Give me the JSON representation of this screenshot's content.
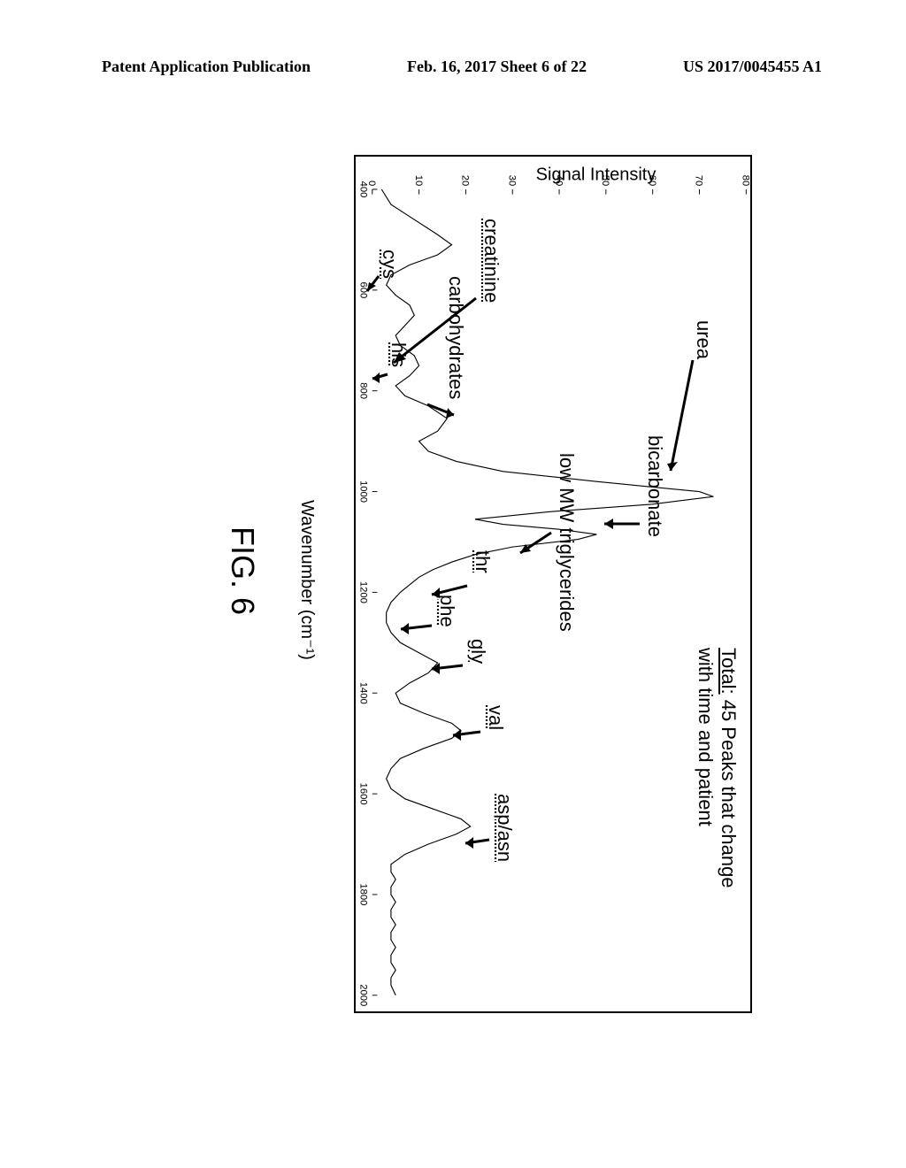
{
  "header": {
    "left": "Patent Application Publication",
    "center": "Feb. 16, 2017  Sheet 6 of 22",
    "right": "US 2017/0045455 A1"
  },
  "figure": {
    "caption": "FIG. 6",
    "xlabel": "Wavenumber (cm⁻¹)",
    "ylabel": "Signal Intensity",
    "xlim": [
      400,
      2000
    ],
    "ylim": [
      0,
      80
    ],
    "xticks": [
      400,
      600,
      800,
      1000,
      1200,
      1400,
      1600,
      1800,
      2000
    ],
    "yticks": [
      0,
      10,
      20,
      30,
      40,
      50,
      60,
      70,
      80
    ],
    "line_color": "#000000",
    "line_width": 1.2,
    "background_color": "#ffffff",
    "border_color": "#000000",
    "border_width": 2,
    "title_fontsize": 22,
    "label_fontsize": 20,
    "tick_fontsize": 12,
    "series": [
      {
        "x": 400,
        "y": 2
      },
      {
        "x": 430,
        "y": 4
      },
      {
        "x": 460,
        "y": 9
      },
      {
        "x": 490,
        "y": 14
      },
      {
        "x": 510,
        "y": 17
      },
      {
        "x": 530,
        "y": 14
      },
      {
        "x": 550,
        "y": 8
      },
      {
        "x": 570,
        "y": 4
      },
      {
        "x": 590,
        "y": 3
      },
      {
        "x": 610,
        "y": 5
      },
      {
        "x": 630,
        "y": 8
      },
      {
        "x": 650,
        "y": 9
      },
      {
        "x": 670,
        "y": 7
      },
      {
        "x": 690,
        "y": 5
      },
      {
        "x": 710,
        "y": 6
      },
      {
        "x": 730,
        "y": 9
      },
      {
        "x": 750,
        "y": 10
      },
      {
        "x": 770,
        "y": 8
      },
      {
        "x": 790,
        "y": 5
      },
      {
        "x": 810,
        "y": 7
      },
      {
        "x": 830,
        "y": 12
      },
      {
        "x": 855,
        "y": 16
      },
      {
        "x": 880,
        "y": 14
      },
      {
        "x": 900,
        "y": 10
      },
      {
        "x": 920,
        "y": 12
      },
      {
        "x": 940,
        "y": 18
      },
      {
        "x": 960,
        "y": 28
      },
      {
        "x": 980,
        "y": 48
      },
      {
        "x": 1000,
        "y": 70
      },
      {
        "x": 1010,
        "y": 73
      },
      {
        "x": 1025,
        "y": 60
      },
      {
        "x": 1040,
        "y": 38
      },
      {
        "x": 1055,
        "y": 22
      },
      {
        "x": 1065,
        "y": 28
      },
      {
        "x": 1075,
        "y": 40
      },
      {
        "x": 1085,
        "y": 48
      },
      {
        "x": 1095,
        "y": 44
      },
      {
        "x": 1110,
        "y": 30
      },
      {
        "x": 1125,
        "y": 22
      },
      {
        "x": 1140,
        "y": 17
      },
      {
        "x": 1155,
        "y": 13
      },
      {
        "x": 1170,
        "y": 10
      },
      {
        "x": 1185,
        "y": 8
      },
      {
        "x": 1200,
        "y": 6
      },
      {
        "x": 1220,
        "y": 4
      },
      {
        "x": 1240,
        "y": 3
      },
      {
        "x": 1260,
        "y": 3
      },
      {
        "x": 1280,
        "y": 4
      },
      {
        "x": 1300,
        "y": 6
      },
      {
        "x": 1320,
        "y": 10
      },
      {
        "x": 1340,
        "y": 14
      },
      {
        "x": 1360,
        "y": 12
      },
      {
        "x": 1380,
        "y": 8
      },
      {
        "x": 1400,
        "y": 5
      },
      {
        "x": 1420,
        "y": 6
      },
      {
        "x": 1440,
        "y": 11
      },
      {
        "x": 1460,
        "y": 17
      },
      {
        "x": 1475,
        "y": 19
      },
      {
        "x": 1490,
        "y": 17
      },
      {
        "x": 1510,
        "y": 11
      },
      {
        "x": 1530,
        "y": 6
      },
      {
        "x": 1550,
        "y": 4
      },
      {
        "x": 1570,
        "y": 3
      },
      {
        "x": 1590,
        "y": 4
      },
      {
        "x": 1610,
        "y": 7
      },
      {
        "x": 1630,
        "y": 13
      },
      {
        "x": 1650,
        "y": 19
      },
      {
        "x": 1665,
        "y": 21
      },
      {
        "x": 1680,
        "y": 18
      },
      {
        "x": 1700,
        "y": 12
      },
      {
        "x": 1720,
        "y": 7
      },
      {
        "x": 1740,
        "y": 4
      },
      {
        "x": 1755,
        "y": 4
      },
      {
        "x": 1770,
        "y": 5
      },
      {
        "x": 1785,
        "y": 4
      },
      {
        "x": 1800,
        "y": 4
      },
      {
        "x": 1815,
        "y": 5
      },
      {
        "x": 1830,
        "y": 4
      },
      {
        "x": 1845,
        "y": 4
      },
      {
        "x": 1860,
        "y": 5
      },
      {
        "x": 1875,
        "y": 4
      },
      {
        "x": 1890,
        "y": 4
      },
      {
        "x": 1905,
        "y": 5
      },
      {
        "x": 1920,
        "y": 4
      },
      {
        "x": 1935,
        "y": 4
      },
      {
        "x": 1950,
        "y": 5
      },
      {
        "x": 1965,
        "y": 4
      },
      {
        "x": 1980,
        "y": 4
      },
      {
        "x": 2000,
        "y": 5
      }
    ],
    "annotations": {
      "total_line1": "Total: 45 Peaks that change",
      "total_line2": "with time and patient",
      "urea": "urea",
      "bicarbonate": "bicarbonate",
      "lowmw": "low MW triglycerides",
      "creatinine": "creatinine",
      "carbohydrates": "carbohydrates",
      "cys": "cys",
      "his": "his",
      "thr": "thr",
      "phe": "phe",
      "gly": "gly",
      "val": "val",
      "aspasn": "asp/asn"
    }
  }
}
